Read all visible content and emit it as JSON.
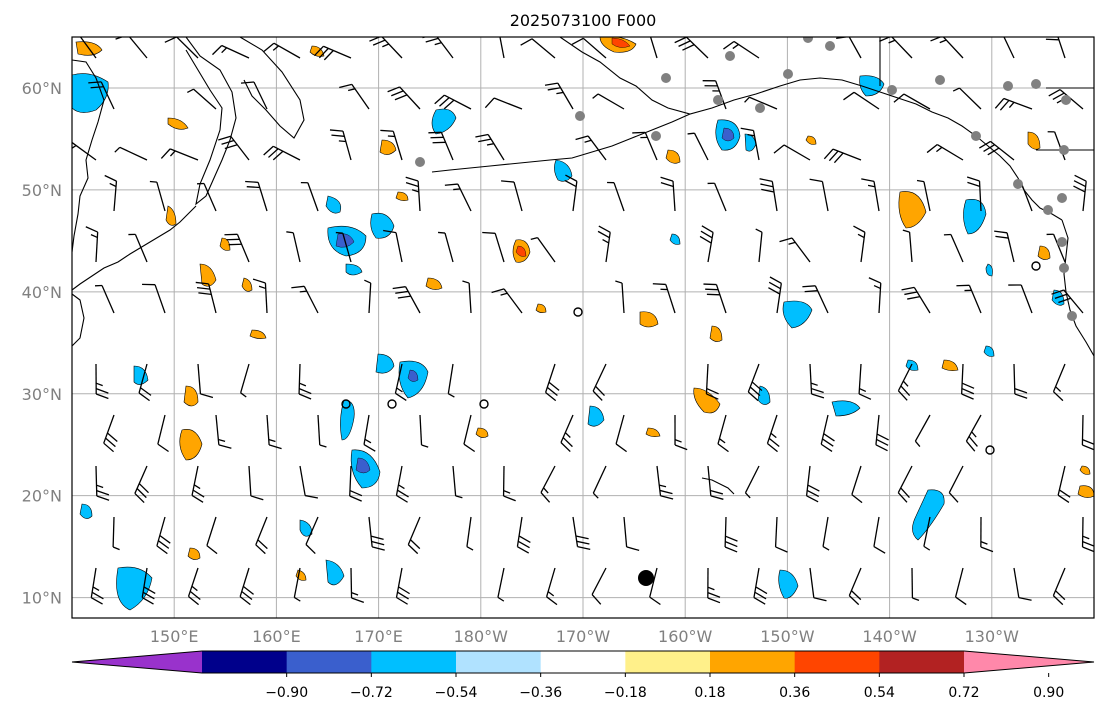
{
  "title": "2025073100 F000",
  "lat_labels": [
    {
      "text": "60°N",
      "lat": 60
    },
    {
      "text": "50°N",
      "lat": 50
    },
    {
      "text": "40°N",
      "lat": 40
    },
    {
      "text": "30°N",
      "lat": 30
    },
    {
      "text": "20°N",
      "lat": 20
    },
    {
      "text": "10°N",
      "lat": 10
    }
  ],
  "lon_labels": [
    {
      "text": "150°E",
      "lon": 150
    },
    {
      "text": "160°E",
      "lon": 160
    },
    {
      "text": "170°E",
      "lon": 170
    },
    {
      "text": "180°W",
      "lon": 180
    },
    {
      "text": "170°W",
      "lon": 190
    },
    {
      "text": "160°W",
      "lon": 200
    },
    {
      "text": "150°W",
      "lon": 210
    },
    {
      "text": "140°W",
      "lon": 220
    },
    {
      "text": "130°W",
      "lon": 230
    }
  ],
  "colorbar": {
    "ticks": [
      "−0.90",
      "−0.72",
      "−0.54",
      "−0.36",
      "−0.18",
      "0.18",
      "0.36",
      "0.54",
      "0.72",
      "0.90"
    ],
    "colors": [
      "#9932cc",
      "#00008b",
      "#3a5fcd",
      "#00bfff",
      "#b0e2ff",
      "#ffffff",
      "#fff08a",
      "#ffa500",
      "#ff4500",
      "#b22222",
      "#ff88aa"
    ]
  },
  "colors": {
    "positive_fill": "#ffa500",
    "negative_fill": "#00bfff",
    "land_outline": "#000000",
    "grid": "#b0b0b0",
    "station": "#808080",
    "axis_label": "#808080"
  },
  "map_extent": {
    "lon_min": 140,
    "lon_max": 240,
    "lat_min": 8,
    "lat_max": 65
  }
}
